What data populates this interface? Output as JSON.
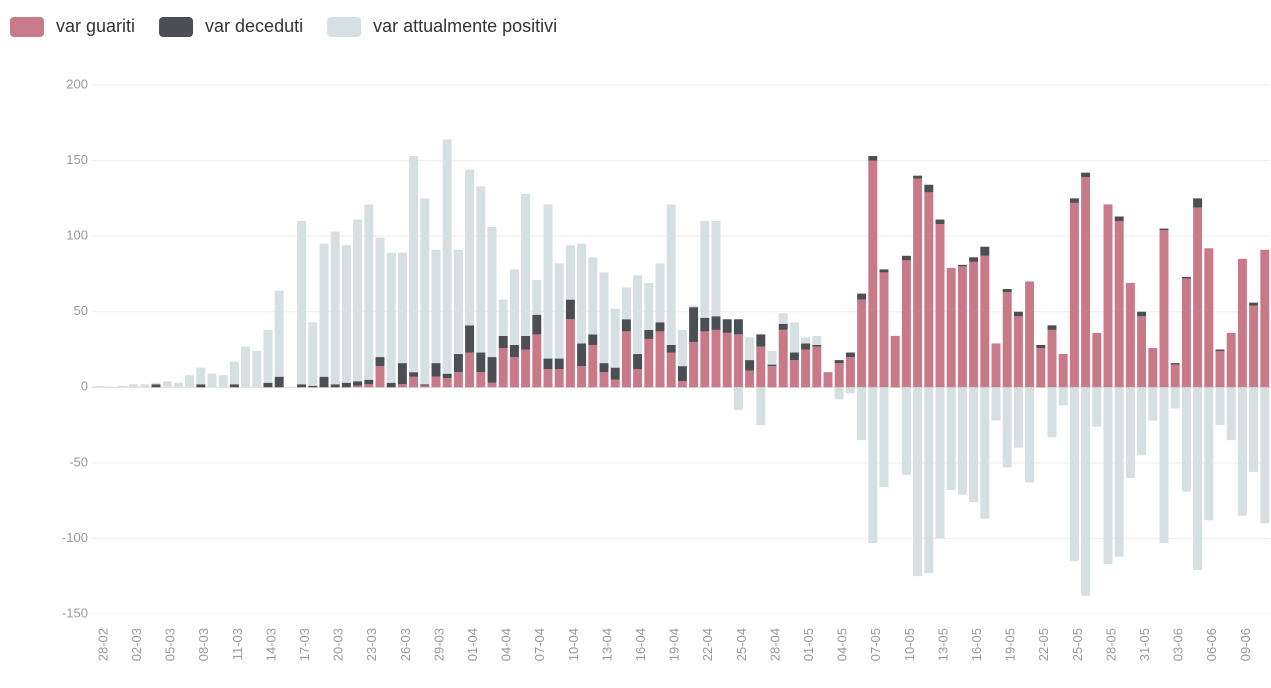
{
  "chart_data": {
    "type": "stacked_bar",
    "categories": [
      "28-02",
      null,
      null,
      "02-03",
      null,
      null,
      "05-03",
      null,
      null,
      "08-03",
      null,
      null,
      "11-03",
      null,
      null,
      "14-03",
      null,
      null,
      "17-03",
      null,
      null,
      "20-03",
      null,
      null,
      "23-03",
      null,
      null,
      "26-03",
      null,
      null,
      "29-03",
      null,
      null,
      "01-04",
      null,
      null,
      "04-04",
      null,
      null,
      "07-04",
      null,
      null,
      "10-04",
      null,
      null,
      "13-04",
      null,
      null,
      "16-04",
      null,
      null,
      "19-04",
      null,
      null,
      "22-04",
      null,
      null,
      "25-04",
      null,
      null,
      "28-04",
      null,
      null,
      "01-05",
      null,
      null,
      "04-05",
      null,
      null,
      "07-05",
      null,
      null,
      "10-05",
      null,
      null,
      "13-05",
      null,
      null,
      "16-05",
      null,
      null,
      "19-05",
      null,
      null,
      "22-05",
      null,
      null,
      "25-05",
      null,
      null,
      "28-05",
      null,
      null,
      "31-05",
      null,
      null,
      "03-06",
      null,
      null,
      "06-06",
      null,
      null,
      "09-06",
      null,
      null
    ],
    "series": [
      {
        "name": "var guariti",
        "color": "#c97a88",
        "values": [
          0,
          0,
          0,
          0,
          0,
          0,
          0,
          0,
          0,
          0,
          0,
          0,
          0,
          0,
          0,
          0,
          0,
          0,
          0,
          0,
          0,
          0,
          0,
          1,
          2,
          14,
          0,
          2,
          7,
          1,
          7,
          6,
          10,
          23,
          10,
          3,
          26,
          20,
          25,
          35,
          12,
          12,
          45,
          14,
          28,
          10,
          5,
          37,
          12,
          32,
          37,
          23,
          4,
          30,
          37,
          38,
          36,
          35,
          11,
          27,
          14,
          38,
          18,
          25,
          27,
          10,
          16,
          20,
          58,
          150,
          76,
          34,
          84,
          138,
          129,
          108,
          79,
          80,
          83,
          87,
          29,
          63,
          47,
          70,
          26,
          38,
          22,
          122,
          139,
          36,
          121,
          110,
          69,
          47,
          26,
          104,
          15,
          72,
          119,
          92,
          24,
          36,
          85,
          54,
          91
        ]
      },
      {
        "name": "var deceduti",
        "color": "#4b4f54",
        "values": [
          0,
          0,
          0,
          0,
          0,
          2,
          0,
          0,
          0,
          2,
          0,
          0,
          2,
          0,
          0,
          3,
          7,
          0,
          2,
          1,
          7,
          2,
          3,
          3,
          3,
          6,
          3,
          14,
          3,
          1,
          9,
          3,
          12,
          18,
          13,
          17,
          8,
          8,
          9,
          13,
          7,
          7,
          13,
          15,
          7,
          6,
          8,
          8,
          10,
          6,
          6,
          5,
          10,
          23,
          9,
          9,
          9,
          10,
          7,
          8,
          1,
          4,
          5,
          4,
          1,
          0,
          2,
          3,
          4,
          3,
          2,
          0,
          3,
          2,
          5,
          3,
          0,
          1,
          3,
          6,
          0,
          2,
          3,
          0,
          2,
          3,
          0,
          3,
          3,
          0,
          0,
          3,
          0,
          3,
          0,
          1,
          1,
          1,
          6,
          0,
          1,
          0,
          0,
          2,
          0
        ]
      },
      {
        "name": "var attualmente positivi",
        "color": "#d6e0e3",
        "values": [
          1,
          0,
          1,
          2,
          2,
          1,
          4,
          3,
          8,
          11,
          9,
          8,
          15,
          27,
          24,
          35,
          57,
          0,
          108,
          42,
          88,
          101,
          91,
          107,
          116,
          79,
          86,
          73,
          143,
          123,
          75,
          155,
          69,
          103,
          110,
          86,
          24,
          50,
          94,
          23,
          102,
          63,
          36,
          66,
          51,
          60,
          39,
          21,
          52,
          31,
          39,
          93,
          24,
          1,
          64,
          63,
          0,
          -15,
          15,
          -25,
          9,
          7,
          20,
          4,
          6,
          0,
          -8,
          -4,
          -35,
          -103,
          -66,
          0,
          -58,
          -125,
          -123,
          -100,
          -68,
          -71,
          -76,
          -87,
          -22,
          -53,
          -40,
          -63,
          0,
          -33,
          -12,
          -115,
          -138,
          -26,
          -117,
          -112,
          -60,
          -45,
          -22,
          -103,
          -14,
          -69,
          -121,
          -88,
          -25,
          -35,
          -85,
          -56,
          -90
        ]
      }
    ],
    "ylim": [
      -150,
      200
    ],
    "yticks": [
      -150,
      -100,
      -50,
      0,
      50,
      100,
      150,
      200
    ],
    "grid": true
  }
}
